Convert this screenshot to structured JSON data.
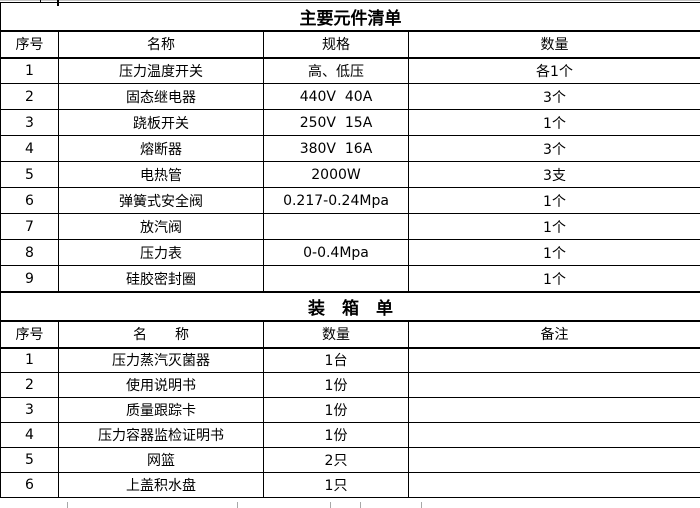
{
  "main_table": {
    "title": "主要元件清单",
    "headers": {
      "no": "序号",
      "name": "名称",
      "spec": "规格",
      "qty": "数量"
    },
    "rows": [
      {
        "no": "1",
        "name": "压力温度开关",
        "spec": "高、低压",
        "qty": "各1个"
      },
      {
        "no": "2",
        "name": "固态继电器",
        "spec": "440V  40A",
        "qty": "3个"
      },
      {
        "no": "3",
        "name": "跷板开关",
        "spec": "250V  15A",
        "qty": "1个"
      },
      {
        "no": "4",
        "name": "熔断器",
        "spec": "380V  16A",
        "qty": "3个"
      },
      {
        "no": "5",
        "name": "电热管",
        "spec": "2000W",
        "qty": "3支"
      },
      {
        "no": "6",
        "name": "弹簧式安全阀",
        "spec": "0.217-0.24Mpa",
        "qty": "1个"
      },
      {
        "no": "7",
        "name": "放汽阀",
        "spec": "",
        "qty": "1个"
      },
      {
        "no": "8",
        "name": "压力表",
        "spec": "0-0.4Mpa",
        "qty": "1个"
      },
      {
        "no": "9",
        "name": "硅胶密封圈",
        "spec": "",
        "qty": "1个"
      }
    ]
  },
  "packing_table": {
    "title": "装　箱　单",
    "headers": {
      "no": "序号",
      "name": "名　　称",
      "qty": "数量",
      "remark": "备注"
    },
    "rows": [
      {
        "no": "1",
        "name": "压力蒸汽灭菌器",
        "qty": "1台",
        "remark": ""
      },
      {
        "no": "2",
        "name": "使用说明书",
        "qty": "1份",
        "remark": ""
      },
      {
        "no": "3",
        "name": "质量跟踪卡",
        "qty": "1份",
        "remark": ""
      },
      {
        "no": "4",
        "name": "压力容器监检证明书",
        "qty": "1份",
        "remark": ""
      },
      {
        "no": "5",
        "name": "网篮",
        "qty": "2只",
        "remark": ""
      },
      {
        "no": "6",
        "name": "上盖积水盘",
        "qty": "1只",
        "remark": ""
      }
    ]
  }
}
